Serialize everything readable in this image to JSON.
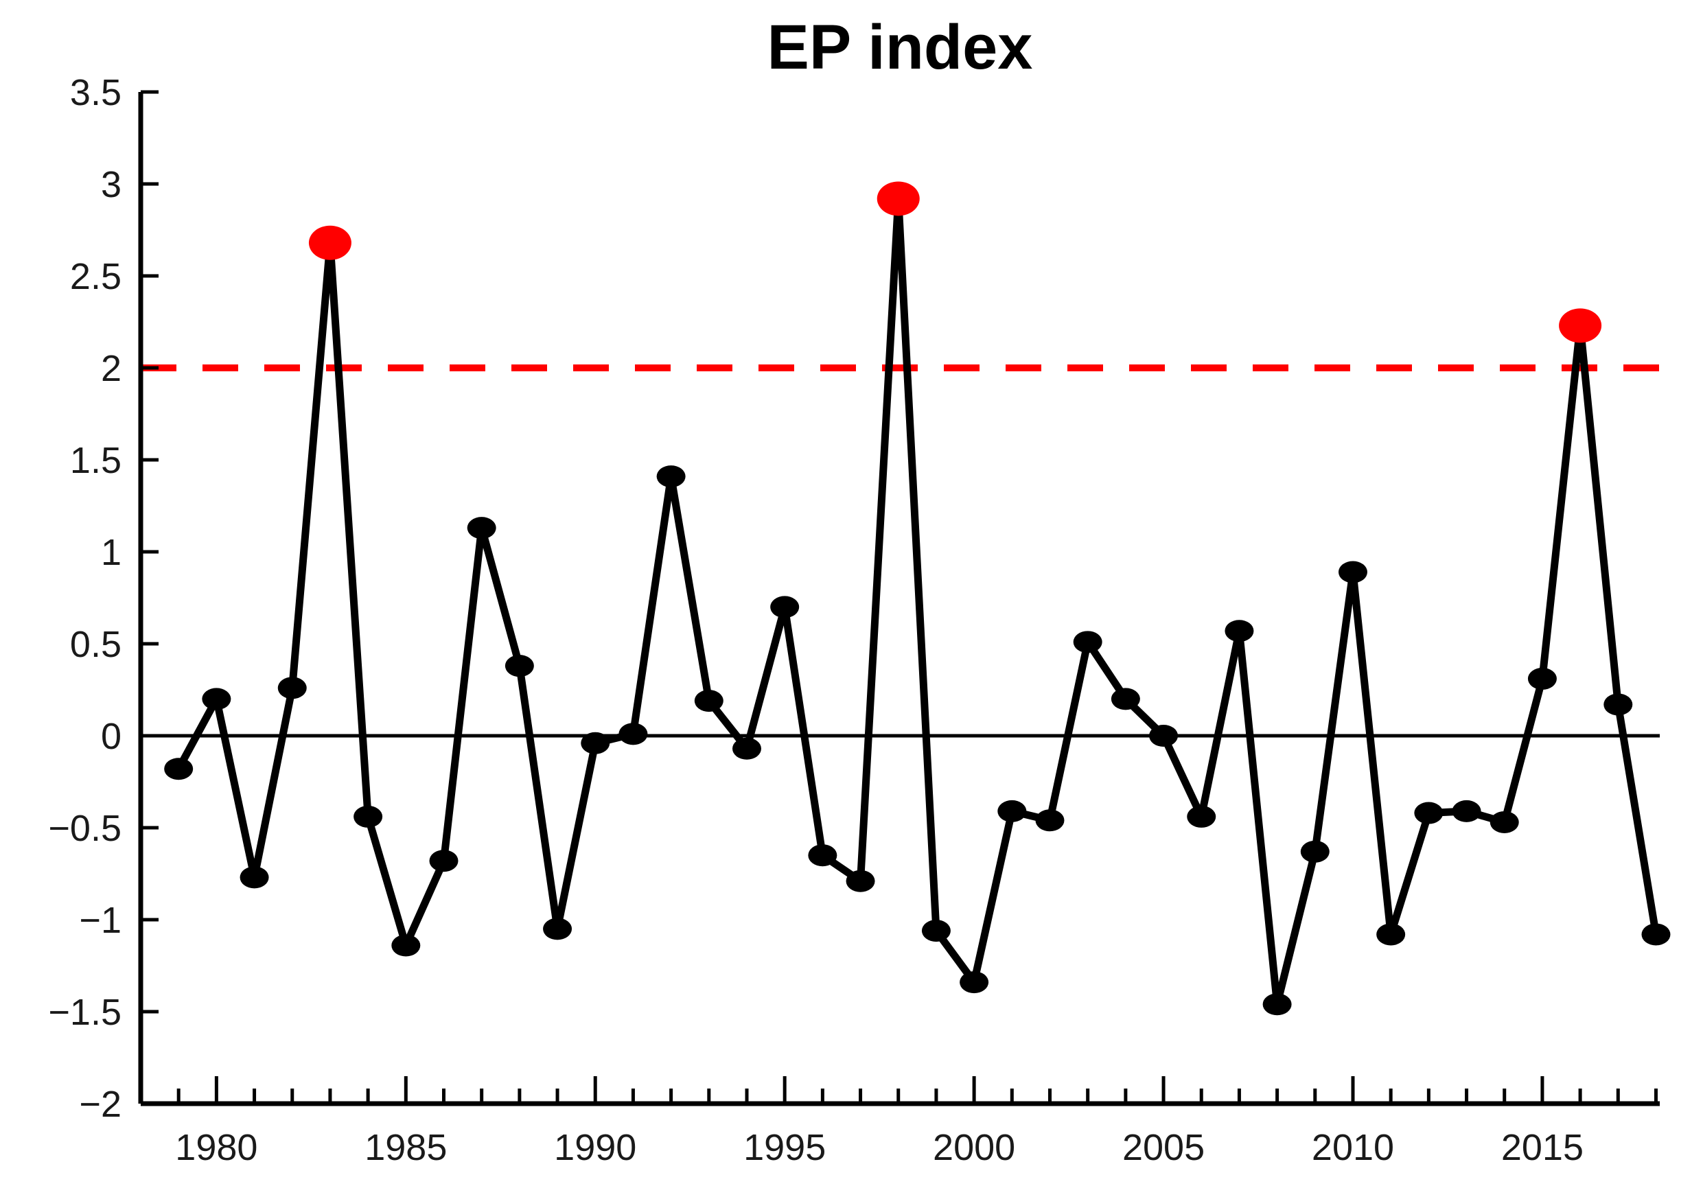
{
  "chart_data": {
    "type": "line",
    "title": "EP index",
    "x": [
      1979,
      1980,
      1981,
      1982,
      1983,
      1984,
      1985,
      1986,
      1987,
      1988,
      1989,
      1990,
      1991,
      1992,
      1993,
      1994,
      1995,
      1996,
      1997,
      1998,
      1999,
      2000,
      2001,
      2002,
      2003,
      2004,
      2005,
      2006,
      2007,
      2008,
      2009,
      2010,
      2011,
      2012,
      2013,
      2014,
      2015,
      2016,
      2017,
      2018
    ],
    "series": [
      {
        "name": "EP index",
        "values": [
          -0.18,
          0.2,
          -0.77,
          0.26,
          2.68,
          -0.44,
          -1.14,
          -0.68,
          1.13,
          0.38,
          -1.05,
          -0.04,
          0.01,
          1.41,
          0.19,
          -0.07,
          0.7,
          -0.65,
          -0.79,
          2.92,
          -1.06,
          -1.34,
          -0.41,
          -0.46,
          0.51,
          0.2,
          0.0,
          -0.44,
          0.57,
          -1.46,
          -0.63,
          0.89,
          -1.08,
          -0.42,
          -0.41,
          -0.47,
          0.31,
          2.23,
          0.17,
          -1.08
        ]
      }
    ],
    "highlight_points": [
      {
        "year": 1983,
        "value": 2.68
      },
      {
        "year": 1998,
        "value": 2.92
      },
      {
        "year": 2016,
        "value": 2.23
      }
    ],
    "threshold_line": {
      "value": 2,
      "style": "dashed",
      "color": "#ff0000"
    },
    "zero_line": {
      "value": 0,
      "color": "#000000"
    },
    "xlim": [
      1978,
      2018.1
    ],
    "ylim": [
      -2,
      3.5
    ],
    "yticks": {
      "values": [
        3.5,
        3,
        2.5,
        2,
        1.5,
        1,
        0.5,
        0,
        -0.5,
        -1,
        -1.5,
        -2
      ],
      "labels": [
        "3.5",
        "3",
        "2.5",
        "2",
        "1.5",
        "1",
        "0.5",
        "0",
        "−0.5",
        "−1",
        "−1.5",
        "−2"
      ]
    },
    "xticks": {
      "major_values": [
        1980,
        1985,
        1990,
        1995,
        2000,
        2005,
        2010,
        2015
      ],
      "major_labels": [
        "1980",
        "1985",
        "1990",
        "1995",
        "2000",
        "2005",
        "2010",
        "2015"
      ],
      "minor_years_start": 1979,
      "minor_years_end": 2018
    },
    "grid": false,
    "legend": null,
    "colors": {
      "line": "#000000",
      "marker": "#000000",
      "highlight_marker": "#ff0000",
      "axis": "#000000"
    }
  }
}
